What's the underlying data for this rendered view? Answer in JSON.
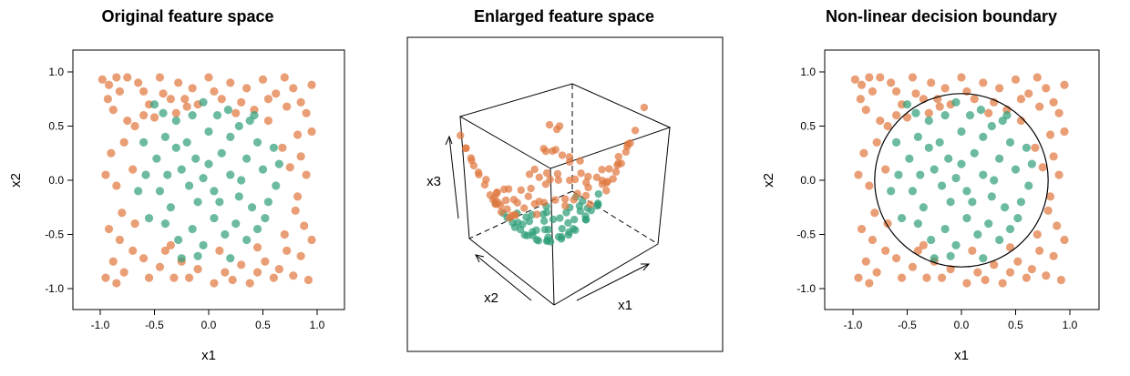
{
  "colors": {
    "class_outer": "#E07840",
    "class_inner": "#2E9E78"
  },
  "chart_data": [
    {
      "type": "scatter",
      "title": "Original feature space",
      "xlabel": "x1",
      "ylabel": "x2",
      "xlim": [
        -1.25,
        1.25
      ],
      "ylim": [
        -1.25,
        1.25
      ],
      "xticks": [
        "-1.0",
        "-0.5",
        "0.0",
        "0.5",
        "1.0"
      ],
      "yticks": [
        "-1.0",
        "-0.5",
        "0.0",
        "0.5",
        "1.0"
      ],
      "grid": false
    },
    {
      "type": "scatter",
      "title": "Enlarged feature space",
      "xlabel": "x1",
      "ylabel": "x2",
      "zlabel": "x3",
      "grid": false
    },
    {
      "type": "scatter",
      "title": "Non-linear decision boundary",
      "xlabel": "x1",
      "ylabel": "x2",
      "xlim": [
        -1.25,
        1.25
      ],
      "ylim": [
        -1.25,
        1.25
      ],
      "xticks": [
        "-1.0",
        "-0.5",
        "0.0",
        "0.5",
        "1.0"
      ],
      "yticks": [
        "-1.0",
        "-0.5",
        "0.0",
        "0.5",
        "1.0"
      ],
      "grid": false,
      "boundary": {
        "shape": "circle",
        "center": [
          0,
          0
        ],
        "radius": 0.8
      }
    }
  ],
  "points": {
    "orange": [
      [
        -0.98,
        0.93
      ],
      [
        -0.92,
        0.88
      ],
      [
        -0.85,
        0.95
      ],
      [
        -0.93,
        0.75
      ],
      [
        -0.88,
        0.65
      ],
      [
        -0.82,
        0.82
      ],
      [
        -0.75,
        0.95
      ],
      [
        -0.65,
        0.9
      ],
      [
        -0.6,
        0.82
      ],
      [
        -0.55,
        0.7
      ],
      [
        -0.45,
        0.95
      ],
      [
        -0.42,
        0.8
      ],
      [
        -0.35,
        0.75
      ],
      [
        -0.3,
        0.62
      ],
      [
        -0.28,
        0.9
      ],
      [
        -0.22,
        0.75
      ],
      [
        -0.15,
        0.85
      ],
      [
        -0.1,
        0.7
      ],
      [
        0.0,
        0.95
      ],
      [
        0.05,
        0.82
      ],
      [
        0.12,
        0.75
      ],
      [
        0.2,
        0.9
      ],
      [
        0.3,
        0.72
      ],
      [
        0.35,
        0.85
      ],
      [
        0.42,
        0.65
      ],
      [
        0.5,
        0.93
      ],
      [
        0.55,
        0.75
      ],
      [
        0.62,
        0.8
      ],
      [
        0.7,
        0.95
      ],
      [
        0.72,
        0.68
      ],
      [
        0.78,
        0.85
      ],
      [
        0.85,
        0.72
      ],
      [
        0.9,
        0.62
      ],
      [
        0.95,
        0.88
      ],
      [
        -0.75,
        0.55
      ],
      [
        -0.68,
        0.5
      ],
      [
        -0.6,
        0.6
      ],
      [
        -0.78,
        0.35
      ],
      [
        -0.9,
        0.25
      ],
      [
        -0.95,
        0.05
      ],
      [
        -0.85,
        -0.05
      ],
      [
        -0.8,
        -0.3
      ],
      [
        -0.92,
        -0.45
      ],
      [
        -0.82,
        -0.55
      ],
      [
        -0.88,
        -0.75
      ],
      [
        -0.95,
        -0.9
      ],
      [
        -0.85,
        -0.95
      ],
      [
        -0.78,
        -0.85
      ],
      [
        -0.7,
        -0.65
      ],
      [
        -0.6,
        -0.72
      ],
      [
        -0.55,
        -0.9
      ],
      [
        -0.45,
        -0.8
      ],
      [
        -0.4,
        -0.65
      ],
      [
        -0.32,
        -0.9
      ],
      [
        -0.25,
        -0.75
      ],
      [
        -0.18,
        -0.9
      ],
      [
        -0.1,
        -0.82
      ],
      [
        0.05,
        -0.95
      ],
      [
        0.15,
        -0.85
      ],
      [
        0.22,
        -0.92
      ],
      [
        0.3,
        -0.78
      ],
      [
        0.38,
        -0.95
      ],
      [
        0.45,
        -0.85
      ],
      [
        0.52,
        -0.75
      ],
      [
        0.6,
        -0.9
      ],
      [
        0.65,
        -0.82
      ],
      [
        0.72,
        -0.65
      ],
      [
        0.78,
        -0.88
      ],
      [
        0.85,
        -0.7
      ],
      [
        0.92,
        -0.92
      ],
      [
        0.95,
        -0.55
      ],
      [
        0.88,
        -0.42
      ],
      [
        0.82,
        -0.15
      ],
      [
        0.9,
        0.05
      ],
      [
        0.85,
        0.22
      ],
      [
        0.95,
        0.45
      ],
      [
        0.82,
        0.42
      ],
      [
        0.75,
        0.12
      ],
      [
        0.8,
        -0.28
      ],
      [
        0.7,
        -0.5
      ],
      [
        -0.7,
        0.1
      ],
      [
        -0.68,
        -0.4
      ],
      [
        0.68,
        0.3
      ],
      [
        -0.5,
        0.58
      ],
      [
        0.45,
        -0.62
      ],
      [
        0.55,
        0.55
      ],
      [
        -0.35,
        -0.6
      ],
      [
        0.25,
        0.62
      ],
      [
        -0.2,
        0.68
      ],
      [
        0.1,
        -0.65
      ]
    ],
    "green": [
      [
        -0.5,
        0.7
      ],
      [
        -0.42,
        0.62
      ],
      [
        -0.3,
        0.55
      ],
      [
        -0.15,
        0.6
      ],
      [
        -0.05,
        0.72
      ],
      [
        0.08,
        0.6
      ],
      [
        0.18,
        0.65
      ],
      [
        0.28,
        0.5
      ],
      [
        0.38,
        0.55
      ],
      [
        -0.6,
        0.35
      ],
      [
        -0.48,
        0.2
      ],
      [
        -0.38,
        0.05
      ],
      [
        -0.45,
        -0.1
      ],
      [
        -0.35,
        -0.25
      ],
      [
        -0.25,
        0.1
      ],
      [
        -0.18,
        -0.05
      ],
      [
        -0.1,
        -0.2
      ],
      [
        0.0,
        0.15
      ],
      [
        0.05,
        -0.1
      ],
      [
        0.12,
        0.25
      ],
      [
        0.2,
        0.05
      ],
      [
        0.28,
        -0.15
      ],
      [
        0.35,
        0.2
      ],
      [
        0.45,
        0.35
      ],
      [
        0.5,
        0.1
      ],
      [
        0.55,
        -0.2
      ],
      [
        0.6,
        0.3
      ],
      [
        -0.55,
        -0.35
      ],
      [
        -0.4,
        -0.4
      ],
      [
        -0.28,
        -0.55
      ],
      [
        -0.15,
        -0.45
      ],
      [
        -0.05,
        -0.6
      ],
      [
        0.05,
        -0.35
      ],
      [
        0.15,
        -0.5
      ],
      [
        0.25,
        -0.4
      ],
      [
        0.35,
        -0.55
      ],
      [
        0.45,
        -0.45
      ],
      [
        0.52,
        -0.35
      ],
      [
        -0.65,
        -0.1
      ],
      [
        -0.58,
        0.05
      ],
      [
        0.62,
        -0.05
      ],
      [
        0.65,
        0.15
      ],
      [
        -0.2,
        0.35
      ],
      [
        0.0,
        0.45
      ],
      [
        0.2,
        0.4
      ],
      [
        -0.3,
        0.3
      ],
      [
        0.1,
        -0.2
      ],
      [
        -0.12,
        0.2
      ],
      [
        0.3,
        0.0
      ],
      [
        -0.4,
        0.4
      ],
      [
        0.4,
        -0.25
      ],
      [
        -0.1,
        -0.7
      ],
      [
        0.2,
        -0.72
      ],
      [
        -0.25,
        -0.72
      ],
      [
        0.42,
        0.6
      ],
      [
        -0.05,
        0.02
      ]
    ]
  }
}
